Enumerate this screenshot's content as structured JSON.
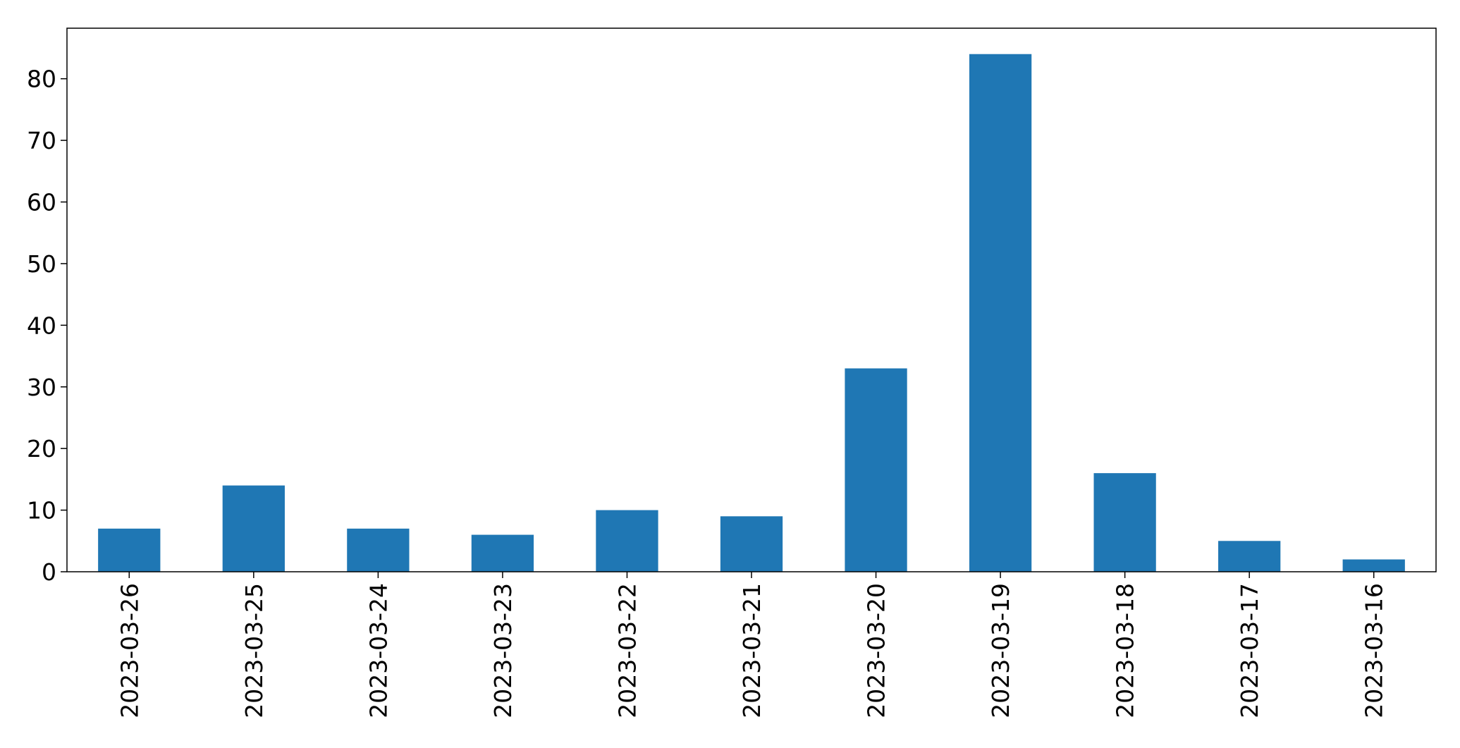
{
  "chart_data": {
    "type": "bar",
    "title": "",
    "xlabel": "",
    "ylabel": "",
    "categories": [
      "2023-03-26",
      "2023-03-25",
      "2023-03-24",
      "2023-03-23",
      "2023-03-22",
      "2023-03-21",
      "2023-03-20",
      "2023-03-19",
      "2023-03-18",
      "2023-03-17",
      "2023-03-16"
    ],
    "values": [
      7,
      14,
      7,
      6,
      10,
      9,
      33,
      84,
      16,
      5,
      2
    ],
    "ylim": [
      0,
      88.2
    ],
    "yticks": [
      0,
      10,
      20,
      30,
      40,
      50,
      60,
      70,
      80
    ],
    "bar_color": "#1f77b4",
    "grid": false,
    "legend": "none"
  }
}
